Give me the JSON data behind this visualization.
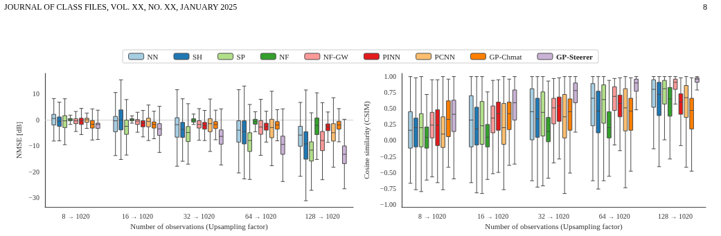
{
  "chart_data": [
    {
      "type": "box",
      "annotations": [
        "JOURNAL OF CLASS FILES, VOL. XX, NO. XX, JANUARY 2025"
      ],
      "xlabel": "Number of observations (Upsampling factor)",
      "ylabel": "NMSE [dB]",
      "categories": [
        "8 → 1020",
        "16 → 1020",
        "32 → 1020",
        "64 → 1020",
        "128 → 1020"
      ],
      "ylim": [
        -33.5,
        18
      ],
      "yticks": [
        {
          "value": -30,
          "label": "−30"
        },
        {
          "value": -20,
          "label": "−20"
        },
        {
          "value": -10,
          "label": "−10"
        },
        0,
        10
      ],
      "grid": false,
      "legend": "top",
      "ref_lines": [
        {
          "axis": "y",
          "value": 0
        }
      ],
      "series": [
        {
          "name": "NN",
          "color": "#a6cee3",
          "boxes": [
            {
              "low": -8.1,
              "q1": -1.9,
              "median": 0.6,
              "q3": 2.2,
              "high": 8.3
            },
            {
              "low": -13.7,
              "q1": -4.5,
              "median": -0.3,
              "q3": 1.4,
              "high": 10.6
            },
            {
              "low": -17.8,
              "q1": -6.6,
              "median": -1.8,
              "q3": 0.9,
              "high": 11.7
            },
            {
              "low": -20.4,
              "q1": -8.5,
              "median": -3.9,
              "q3": -0.3,
              "high": 11.7
            },
            {
              "low": -21.7,
              "q1": -10.1,
              "median": -5.8,
              "q3": -2.4,
              "high": 6.8
            }
          ]
        },
        {
          "name": "SH",
          "color": "#1f78b4",
          "boxes": [
            {
              "low": -8,
              "q1": -2.4,
              "median": -0.5,
              "q3": 1.2,
              "high": 6.9
            },
            {
              "low": -15.2,
              "q1": -3.8,
              "median": 0,
              "q3": 3.9,
              "high": 15.5
            },
            {
              "low": -15.9,
              "q1": -6.7,
              "median": -3.6,
              "q3": -0.9,
              "high": 8.2
            },
            {
              "low": -22.7,
              "q1": -9.2,
              "median": -4.5,
              "q3": -0.3,
              "high": 13.1
            },
            {
              "low": -31.1,
              "q1": -15.1,
              "median": -9.2,
              "q3": -4.5,
              "high": 11.6
            }
          ]
        },
        {
          "name": "SP",
          "color": "#b2df8a",
          "boxes": [
            {
              "low": -9.5,
              "q1": -2.9,
              "median": -0.3,
              "q3": 1.7,
              "high": 8.2
            },
            {
              "low": -13.5,
              "q1": -5.5,
              "median": -2.4,
              "q3": 0,
              "high": 7.9
            },
            {
              "low": -17,
              "q1": -8.3,
              "median": -4.8,
              "q3": -2.5,
              "high": 6.3
            },
            {
              "low": -22.9,
              "q1": -12.1,
              "median": -7.9,
              "q3": -4.9,
              "high": 6
            },
            {
              "low": -27.1,
              "q1": -15.8,
              "median": -11.6,
              "q3": -8.4,
              "high": 2.8
            }
          ]
        },
        {
          "name": "NF",
          "color": "#33a02c",
          "boxes": [
            {
              "low": -1.7,
              "q1": -0.3,
              "median": 0.2,
              "q3": 0.6,
              "high": 1.9
            },
            {
              "low": -1.2,
              "q1": -0.3,
              "median": 0.2,
              "q3": 0.5,
              "high": 1.6
            },
            {
              "low": -1.7,
              "q1": -0.8,
              "median": -0.1,
              "q3": 0.5,
              "high": 2.3
            },
            {
              "low": -4.5,
              "q1": -1.6,
              "median": -0.5,
              "q3": 0.3,
              "high": 3.2
            },
            {
              "low": -15.2,
              "q1": -5.6,
              "median": -2.1,
              "q3": 0.8,
              "high": 10.5
            }
          ]
        },
        {
          "name": "NF-GW",
          "color": "#fb9a99",
          "boxes": [
            {
              "low": -4.4,
              "q1": -1.4,
              "median": -0.3,
              "q3": 0.5,
              "high": 3.3
            },
            {
              "low": -4.7,
              "q1": -1.7,
              "median": -0.4,
              "q3": 0.2,
              "high": 3
            },
            {
              "low": -7.8,
              "q1": -3.1,
              "median": -1.7,
              "q3": -0.3,
              "high": 4.4
            },
            {
              "low": -13.6,
              "q1": -5.5,
              "median": -2.7,
              "q3": -0.2,
              "high": 8
            },
            {
              "low": -23,
              "q1": -11.8,
              "median": -7.9,
              "q3": -4.4,
              "high": 6.7
            }
          ]
        },
        {
          "name": "PINN",
          "color": "#e31a1c",
          "boxes": [
            {
              "low": -5.6,
              "q1": -1.7,
              "median": -0.3,
              "q3": 0.7,
              "high": 4.5
            },
            {
              "low": -6.5,
              "q1": -2.6,
              "median": -1.2,
              "q3": -0.3,
              "high": 3.7
            },
            {
              "low": -7.9,
              "q1": -3.5,
              "median": -2.1,
              "q3": -0.9,
              "high": 3.7
            },
            {
              "low": -8.5,
              "q1": -3.9,
              "median": -2.5,
              "q3": -1.2,
              "high": 3.4
            },
            {
              "low": -8.6,
              "q1": -4.1,
              "median": -2.7,
              "q3": -1.5,
              "high": 3.1
            }
          ]
        },
        {
          "name": "PCNN",
          "color": "#fdbf6f",
          "boxes": [
            {
              "low": -3.2,
              "q1": -0.9,
              "median": 0.1,
              "q3": 0.7,
              "high": 2.7
            },
            {
              "low": -7.9,
              "q1": -2.6,
              "median": -0.5,
              "q3": 0.7,
              "high": 5.8
            },
            {
              "low": -12.1,
              "q1": -4.5,
              "median": -1.4,
              "q3": 0.5,
              "high": 8.1
            },
            {
              "low": -17.6,
              "q1": -6.8,
              "median": -2.9,
              "q3": 0.3,
              "high": 11.1
            },
            {
              "low": -18.2,
              "q1": -8.1,
              "median": -4.9,
              "q3": -1.4,
              "high": 8.6
            }
          ]
        },
        {
          "name": "GP-Chmat",
          "color": "#ff7f00",
          "boxes": [
            {
              "low": -7.7,
              "q1": -3.1,
              "median": -1.6,
              "q3": -0.2,
              "high": 4.3
            },
            {
              "low": -7.2,
              "q1": -3.1,
              "median": -1.7,
              "q3": -0.7,
              "high": 3.4
            },
            {
              "low": -7.6,
              "q1": -3.3,
              "median": -1.7,
              "q3": -0.6,
              "high": 3.8
            },
            {
              "low": -8,
              "q1": -3.5,
              "median": -1.9,
              "q3": -0.6,
              "high": 4
            },
            {
              "low": -8.4,
              "q1": -3.5,
              "median": -1.9,
              "q3": -0.5,
              "high": 4.4
            }
          ]
        },
        {
          "name": "GP-Steerer",
          "color": "#cab2d6",
          "boxes": [
            {
              "low": -7.5,
              "q1": -3.2,
              "median": -1.7,
              "q3": -1.2,
              "high": 3.8
            },
            {
              "low": -12.5,
              "q1": -5.9,
              "median": -3.4,
              "q3": -1.4,
              "high": 5.3
            },
            {
              "low": -17.3,
              "q1": -9.3,
              "median": -6.3,
              "q3": -3.8,
              "high": 4.3
            },
            {
              "low": -23.7,
              "q1": -13.2,
              "median": -9.4,
              "q3": -6.2,
              "high": 4.3
            },
            {
              "low": -26.5,
              "q1": -16.8,
              "median": -13.2,
              "q3": -10,
              "high": 0.3
            }
          ]
        }
      ]
    },
    {
      "type": "box",
      "annotations": [
        "8"
      ],
      "xlabel": "Number of observations (Upsampling factor)",
      "ylabel": "Cosine similarity (CSIM)",
      "categories": [
        "8 → 1020",
        "16 → 1020",
        "32 → 1020",
        "64 → 1020",
        "128 → 1020"
      ],
      "ylim": [
        -1.04,
        1.05
      ],
      "yticks": [
        {
          "value": -1,
          "label": "−1.00"
        },
        {
          "value": -0.75,
          "label": "−0.75"
        },
        {
          "value": -0.5,
          "label": "−0.50"
        },
        {
          "value": -0.25,
          "label": "−0.25"
        },
        {
          "value": 0,
          "label": "0.00"
        },
        {
          "value": 0.25,
          "label": "0.25"
        },
        {
          "value": 0.5,
          "label": "0.50"
        },
        {
          "value": 0.75,
          "label": "0.75"
        },
        {
          "value": 1,
          "label": "1.00"
        }
      ],
      "grid": false,
      "legend": false,
      "series": [
        {
          "color": "#a6cee3",
          "boxes": [
            {
              "low": -0.67,
              "q1": -0.12,
              "median": 0.16,
              "q3": 0.45,
              "high": 1
            },
            {
              "low": -0.66,
              "q1": -0.1,
              "median": 0.32,
              "q3": 0.7,
              "high": 1
            },
            {
              "low": -0.63,
              "q1": 0.01,
              "median": 0.45,
              "q3": 0.81,
              "high": 1
            },
            {
              "low": -0.63,
              "q1": 0.23,
              "median": 0.66,
              "q3": 0.89,
              "high": 1
            },
            {
              "low": -0.13,
              "q1": 0.52,
              "median": 0.8,
              "q3": 0.95,
              "high": 1
            }
          ]
        },
        {
          "color": "#1f78b4",
          "boxes": [
            {
              "low": -0.77,
              "q1": -0.1,
              "median": 0.2,
              "q3": 0.35,
              "high": 0.98
            },
            {
              "low": -0.82,
              "q1": -0.07,
              "median": 0.18,
              "q3": 0.52,
              "high": 1
            },
            {
              "low": -0.73,
              "q1": 0.05,
              "median": 0.34,
              "q3": 0.66,
              "high": 1
            },
            {
              "low": -0.76,
              "q1": 0.12,
              "median": 0.46,
              "q3": 0.77,
              "high": 1
            },
            {
              "low": -0.41,
              "q1": 0.39,
              "median": 0.72,
              "q3": 0.91,
              "high": 1
            }
          ]
        },
        {
          "color": "#b2df8a",
          "boxes": [
            {
              "low": -0.8,
              "q1": -0.1,
              "median": 0.2,
              "q3": 0.42,
              "high": 1
            },
            {
              "low": -0.83,
              "q1": -0.06,
              "median": 0.23,
              "q3": 0.61,
              "high": 1
            },
            {
              "low": -0.71,
              "q1": 0.07,
              "median": 0.44,
              "q3": 0.76,
              "high": 1
            },
            {
              "low": -0.63,
              "q1": 0.27,
              "median": 0.64,
              "q3": 0.87,
              "high": 1
            },
            {
              "low": 0.01,
              "q1": 0.57,
              "median": 0.81,
              "q3": 0.94,
              "high": 1
            }
          ]
        },
        {
          "color": "#33a02c",
          "boxes": [
            {
              "low": -0.62,
              "q1": -0.12,
              "median": 0.05,
              "q3": 0.21,
              "high": 0.72
            },
            {
              "low": -0.61,
              "q1": -0.1,
              "median": 0.05,
              "q3": 0.25,
              "high": 0.76
            },
            {
              "low": -0.59,
              "q1": -0.02,
              "median": 0.14,
              "q3": 0.36,
              "high": 0.93
            },
            {
              "low": -0.56,
              "q1": 0.04,
              "median": 0.2,
              "q3": 0.45,
              "high": 0.94
            },
            {
              "low": -0.29,
              "q1": 0.38,
              "median": 0.65,
              "q3": 0.83,
              "high": 1
            }
          ]
        },
        {
          "color": "#fb9a99",
          "boxes": [
            {
              "low": -0.57,
              "q1": 0.04,
              "median": 0.24,
              "q3": 0.44,
              "high": 0.95
            },
            {
              "low": -0.52,
              "q1": 0.12,
              "median": 0.35,
              "q3": 0.54,
              "high": 0.94
            },
            {
              "low": -0.35,
              "q1": 0.26,
              "median": 0.51,
              "q3": 0.66,
              "high": 0.97
            },
            {
              "low": -0.07,
              "q1": 0.47,
              "median": 0.69,
              "q3": 0.84,
              "high": 0.97
            },
            {
              "low": 0.57,
              "q1": 0.8,
              "median": 0.91,
              "q3": 0.96,
              "high": 1
            }
          ]
        },
        {
          "color": "#e31a1c",
          "boxes": [
            {
              "low": -0.66,
              "q1": -0.08,
              "median": 0.24,
              "q3": 0.48,
              "high": 0.95
            },
            {
              "low": -0.5,
              "q1": 0.16,
              "median": 0.42,
              "q3": 0.6,
              "high": 0.95
            },
            {
              "low": -0.29,
              "q1": 0.3,
              "median": 0.54,
              "q3": 0.68,
              "high": 0.98
            },
            {
              "low": -0.16,
              "q1": 0.37,
              "median": 0.58,
              "q3": 0.71,
              "high": 0.98
            },
            {
              "low": -0.08,
              "q1": 0.41,
              "median": 0.6,
              "q3": 0.73,
              "high": 0.98
            }
          ]
        },
        {
          "color": "#fdbf6f",
          "boxes": [
            {
              "low": -0.77,
              "q1": -0.11,
              "median": 0.1,
              "q3": 0.37,
              "high": 1
            },
            {
              "low": -0.77,
              "q1": -0.06,
              "median": 0.2,
              "q3": 0.58,
              "high": 1
            },
            {
              "low": -0.83,
              "q1": 0.04,
              "median": 0.37,
              "q3": 0.72,
              "high": 1
            },
            {
              "low": -0.74,
              "q1": 0.15,
              "median": 0.51,
              "q3": 0.81,
              "high": 1
            },
            {
              "low": -0.42,
              "q1": 0.36,
              "median": 0.67,
              "q3": 0.86,
              "high": 1
            }
          ]
        },
        {
          "color": "#ff7f00",
          "boxes": [
            {
              "low": -0.42,
              "q1": 0.06,
              "median": 0.33,
              "q3": 0.62,
              "high": 0.96
            },
            {
              "low": -0.39,
              "q1": 0.17,
              "median": 0.42,
              "q3": 0.6,
              "high": 0.96
            },
            {
              "low": -0.51,
              "q1": 0.16,
              "median": 0.45,
              "q3": 0.65,
              "high": 1
            },
            {
              "low": -0.48,
              "q1": 0.16,
              "median": 0.46,
              "q3": 0.66,
              "high": 0.98
            },
            {
              "low": -0.48,
              "q1": 0.18,
              "median": 0.47,
              "q3": 0.66,
              "high": 0.98
            }
          ]
        },
        {
          "color": "#cab2d6",
          "boxes": [
            {
              "low": -0.6,
              "q1": 0.14,
              "median": 0.41,
              "q3": 0.63,
              "high": 1
            },
            {
              "low": -0.37,
              "q1": 0.32,
              "median": 0.59,
              "q3": 0.79,
              "high": 1
            },
            {
              "low": 0.13,
              "q1": 0.59,
              "median": 0.78,
              "q3": 0.9,
              "high": 1
            },
            {
              "low": 0.48,
              "q1": 0.77,
              "median": 0.9,
              "q3": 0.96,
              "high": 1
            },
            {
              "low": 0.79,
              "q1": 0.91,
              "median": 0.96,
              "q3": 0.98,
              "high": 1
            }
          ]
        }
      ]
    }
  ]
}
